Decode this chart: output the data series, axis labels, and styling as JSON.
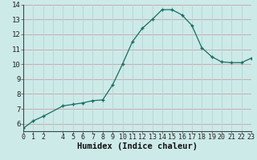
{
  "x": [
    0,
    1,
    2,
    4,
    5,
    6,
    7,
    8,
    9,
    10,
    11,
    12,
    13,
    14,
    15,
    16,
    17,
    18,
    19,
    20,
    21,
    22,
    23
  ],
  "y": [
    5.7,
    6.2,
    6.5,
    7.2,
    7.3,
    7.4,
    7.55,
    7.6,
    8.6,
    10.0,
    11.5,
    12.4,
    13.0,
    13.65,
    13.65,
    13.3,
    12.6,
    11.1,
    10.5,
    10.15,
    10.1,
    10.1,
    10.4
  ],
  "line_color": "#1a6e62",
  "marker": "o",
  "marker_color": "#1a6e62",
  "bg_color": "#cceae8",
  "hgrid_color": "#c8a0a8",
  "vgrid_color": "#b8d4d2",
  "xlabel": "Humidex (Indice chaleur)",
  "xlim": [
    0,
    23
  ],
  "ylim": [
    5.5,
    14.0
  ],
  "yticks": [
    6,
    7,
    8,
    9,
    10,
    11,
    12,
    13,
    14
  ],
  "xticks": [
    0,
    1,
    2,
    4,
    5,
    6,
    7,
    8,
    9,
    10,
    11,
    12,
    13,
    14,
    15,
    16,
    17,
    18,
    19,
    20,
    21,
    22,
    23
  ],
  "xtick_labels": [
    "0",
    "1",
    "2",
    "4",
    "5",
    "6",
    "7",
    "8",
    "9",
    "10",
    "11",
    "12",
    "13",
    "14",
    "15",
    "16",
    "17",
    "18",
    "19",
    "20",
    "21",
    "22",
    "23"
  ],
  "label_fontsize": 7.5,
  "tick_fontsize": 6.5
}
